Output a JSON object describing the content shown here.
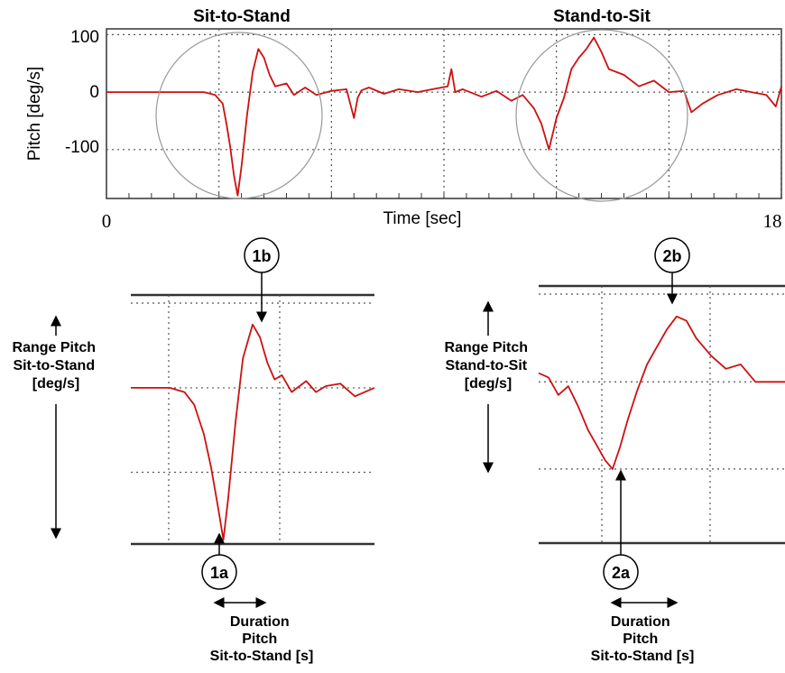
{
  "chart_data": [
    {
      "type": "line",
      "ylabel": "Pitch [deg/s]",
      "xlabel": "Time [sec]",
      "x_ticks": [
        "0",
        "18"
      ],
      "y_ticks": [
        "100",
        "0",
        "-100"
      ],
      "xlim": [
        0,
        18
      ],
      "ylim": [
        -185,
        110
      ],
      "grid": true,
      "annotations": [
        "Sit-to-Stand",
        "Stand-to-Sit"
      ],
      "series": [
        {
          "color": "#cc1111",
          "x": [
            0,
            1.2,
            2.6,
            2.9,
            3.1,
            3.2,
            3.3,
            3.4,
            3.5,
            3.6,
            3.75,
            3.9,
            4.05,
            4.2,
            4.35,
            4.5,
            4.8,
            5.0,
            5.3,
            5.6,
            6.0,
            6.4,
            6.6,
            6.7,
            6.8,
            7.0,
            7.4,
            7.8,
            8.3,
            8.7,
            9.1,
            9.2,
            9.3,
            9.5,
            10.0,
            10.4,
            10.8,
            11.1,
            11.4,
            11.6,
            11.8,
            12.0,
            12.2,
            12.4,
            12.6,
            12.8,
            13.0,
            13.2,
            13.4,
            13.8,
            14.2,
            14.6,
            15.0,
            15.4,
            15.6,
            15.9,
            16.3,
            16.8,
            17.2,
            17.6,
            17.85,
            18.0
          ],
          "y": [
            0,
            0,
            0,
            -5,
            -20,
            -55,
            -95,
            -145,
            -180,
            -130,
            -40,
            35,
            75,
            60,
            30,
            10,
            15,
            -5,
            8,
            -5,
            2,
            5,
            -45,
            -10,
            3,
            8,
            -3,
            5,
            0,
            5,
            10,
            40,
            0,
            5,
            -8,
            2,
            -15,
            -5,
            -28,
            -55,
            -100,
            -45,
            -10,
            40,
            60,
            75,
            95,
            70,
            40,
            30,
            10,
            20,
            0,
            2,
            -35,
            -20,
            -5,
            5,
            0,
            -5,
            -25,
            10
          ]
        }
      ]
    },
    {
      "type": "line",
      "title": "Sit-to-Stand",
      "ylabel": "Range Pitch Sit-to-Stand [deg/s]",
      "xlabel": "Duration Pitch Sit-to-Stand [s]",
      "annotations": [
        "1a",
        "1b"
      ],
      "series": [
        {
          "color": "#cc1111",
          "x": [
            0,
            0.8,
            1.1,
            1.3,
            1.5,
            1.65,
            1.8,
            1.9,
            2.0,
            2.15,
            2.3,
            2.5,
            2.65,
            2.8,
            2.95,
            3.1,
            3.3,
            3.6,
            3.8,
            4.0,
            4.3,
            4.6,
            4.8,
            5.0
          ],
          "y": [
            0,
            0,
            -5,
            -20,
            -55,
            -95,
            -145,
            -180,
            -130,
            -40,
            35,
            75,
            60,
            30,
            10,
            15,
            -5,
            8,
            -5,
            2,
            5,
            -10,
            -5,
            0
          ]
        }
      ]
    },
    {
      "type": "line",
      "title": "Stand-to-Sit",
      "ylabel": "Range Pitch Stand-to-Sit [deg/s]",
      "xlabel": "Duration Pitch Sit-to-Stand [s]",
      "annotations": [
        "2a",
        "2b"
      ],
      "series": [
        {
          "color": "#cc1111",
          "x": [
            0,
            0.2,
            0.4,
            0.6,
            0.8,
            1.0,
            1.2,
            1.35,
            1.5,
            1.65,
            1.8,
            2.0,
            2.2,
            2.4,
            2.6,
            2.8,
            3.0,
            3.2,
            3.5,
            3.8,
            4.1,
            4.4,
            4.7,
            5.0
          ],
          "y": [
            10,
            5,
            -15,
            -5,
            -28,
            -55,
            -75,
            -90,
            -100,
            -75,
            -45,
            -10,
            20,
            40,
            60,
            75,
            70,
            50,
            30,
            15,
            20,
            0,
            0,
            0
          ]
        }
      ]
    }
  ]
}
